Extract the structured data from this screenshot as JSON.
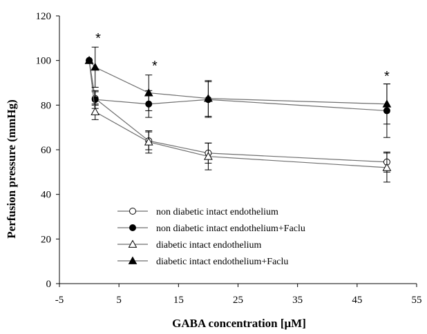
{
  "chart_data": {
    "type": "line",
    "xlabel": "GABA concentration [μM]",
    "ylabel": "Perfusion pressure  (mmHg)",
    "xlim": [
      -5,
      55
    ],
    "ylim": [
      0,
      120
    ],
    "xticks": [
      "-5",
      "5",
      "15",
      "25",
      "35",
      "45",
      "55"
    ],
    "yticks": [
      "0",
      "20",
      "40",
      "60",
      "80",
      "100",
      "120"
    ],
    "grid": false,
    "legend_position": "bottom-center",
    "series": [
      {
        "name": "non diabetic intact endothelium",
        "marker": "circle-open",
        "x": [
          0,
          1,
          10,
          20,
          50
        ],
        "y": [
          100,
          83,
          64,
          58.5,
          54.5
        ],
        "err": [
          0,
          3,
          4,
          4.5,
          4.5
        ]
      },
      {
        "name": "non diabetic intact endothelium+Faclu",
        "marker": "circle-filled",
        "x": [
          0,
          1,
          10,
          20,
          50
        ],
        "y": [
          100,
          82.5,
          80.5,
          82.5,
          77.5
        ],
        "err": [
          0,
          4,
          6,
          8,
          12
        ]
      },
      {
        "name": "diabetic intact endothelium",
        "marker": "triangle-open",
        "x": [
          0,
          1,
          10,
          20,
          50
        ],
        "y": [
          100,
          77,
          63.5,
          57,
          52
        ],
        "err": [
          0,
          3.5,
          5,
          6,
          6.5
        ]
      },
      {
        "name": "diabetic intact endothelium+Faclu",
        "marker": "triangle-filled",
        "x": [
          0,
          1,
          10,
          20,
          50
        ],
        "y": [
          100,
          97,
          85.5,
          83,
          80.5
        ],
        "err": [
          0,
          9,
          8,
          8,
          9
        ]
      }
    ],
    "annotations": [
      {
        "text": "*",
        "x": 1.5,
        "y": 108
      },
      {
        "text": "*",
        "x": 11,
        "y": 95.5
      },
      {
        "text": "*",
        "x": 50,
        "y": 91
      }
    ]
  }
}
